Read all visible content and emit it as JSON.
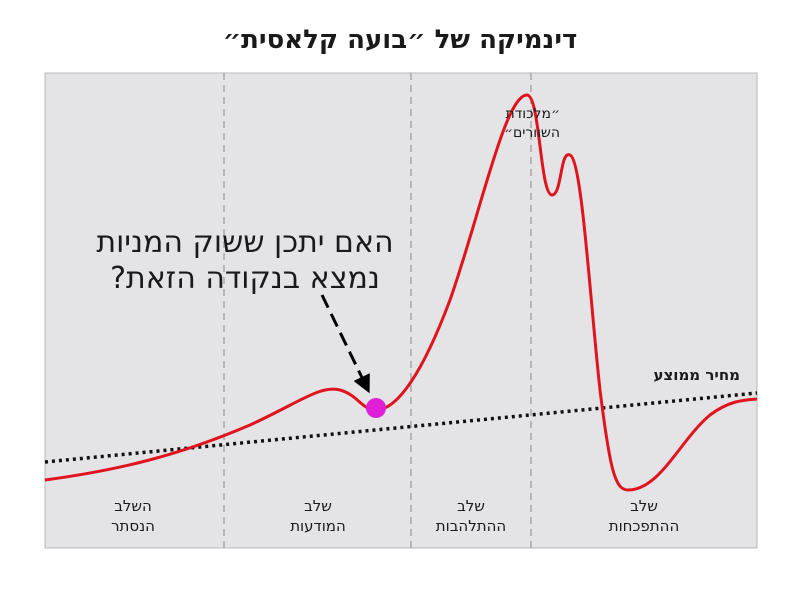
{
  "title": "דינמיקה של ״בועה קלאסית״",
  "question": {
    "lines": [
      "האם יתכן ששוק המניות",
      "נמצא בנקודה הזאת?"
    ]
  },
  "bull_trap": {
    "lines": [
      "״מלכודת",
      "השוורים״"
    ]
  },
  "average_label": "מחיר ממוצע",
  "phases": [
    {
      "lines": [
        "השלב",
        "הנסתר"
      ]
    },
    {
      "lines": [
        "שלב",
        "המודעות"
      ]
    },
    {
      "lines": [
        "שלב",
        "ההתלהבות"
      ]
    },
    {
      "lines": [
        "שלב",
        "ההתפכחות"
      ]
    }
  ]
}
